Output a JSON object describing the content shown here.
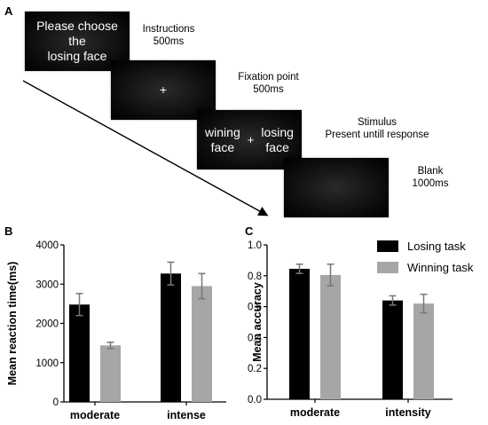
{
  "panel_a": {
    "letter": "A",
    "screens": [
      {
        "text": "Please choose\nthe\nlosing face",
        "description": "Instructions\n500ms"
      },
      {
        "text": "+",
        "description": "Fixation point\n500ms"
      },
      {
        "left": "wining\nface",
        "plus": "+",
        "right": "losing\nface",
        "description": "Stimulus\nPresent untill response"
      },
      {
        "text": "",
        "description": "Blank\n1000ms"
      }
    ]
  },
  "legend": {
    "items": [
      {
        "label": "Losing task",
        "color": "#000000"
      },
      {
        "label": "Winning task",
        "color": "#a6a6a6"
      }
    ]
  },
  "chart_data": [
    {
      "panel": "B",
      "type": "bar",
      "ylabel": "Mean reaction time(ms)",
      "xlabel": "",
      "categories": [
        "moderate",
        "intense"
      ],
      "ylim": [
        0,
        4000
      ],
      "yticks": [
        0,
        1000,
        2000,
        3000,
        4000
      ],
      "series": [
        {
          "name": "Losing task",
          "color": "#000000",
          "values": [
            2480,
            3270
          ],
          "errors": [
            280,
            290
          ]
        },
        {
          "name": "Winning task",
          "color": "#a6a6a6",
          "values": [
            1440,
            2950
          ],
          "errors": [
            80,
            320
          ]
        }
      ]
    },
    {
      "panel": "C",
      "type": "bar",
      "ylabel": "Mean accuracy",
      "xlabel": "",
      "categories": [
        "moderate",
        "intensity"
      ],
      "ylim": [
        0.0,
        1.0
      ],
      "yticks": [
        "0.0",
        "0.2",
        "0.4",
        "0.6",
        "0.8",
        "1.0"
      ],
      "series": [
        {
          "name": "Losing task",
          "color": "#000000",
          "values": [
            0.845,
            0.64
          ],
          "errors": [
            0.03,
            0.03
          ]
        },
        {
          "name": "Winning task",
          "color": "#a6a6a6",
          "values": [
            0.805,
            0.62
          ],
          "errors": [
            0.07,
            0.06
          ]
        }
      ]
    }
  ]
}
